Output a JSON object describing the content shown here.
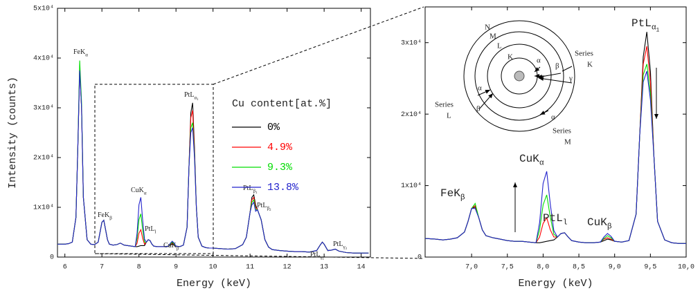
{
  "chart_data": [
    {
      "type": "line",
      "x_label": "Energy (keV)",
      "y_label": "Intensity (counts)",
      "xlim": [
        5.8,
        14.25
      ],
      "ylim": [
        0,
        50000
      ],
      "xticks": [
        6,
        7,
        8,
        9,
        10,
        11,
        12,
        13,
        14
      ],
      "yticks": [
        0,
        {
          "value": 10000,
          "label": "1x10⁴"
        },
        {
          "value": 20000,
          "label": "2x10⁴"
        },
        {
          "value": 30000,
          "label": "3x10⁴"
        },
        {
          "value": 40000,
          "label": "4x10⁴"
        },
        {
          "value": 50000,
          "label": "5x10⁴"
        }
      ],
      "legend_title": "Cu content[at.%]",
      "annotations": [
        {
          "text": "FeK",
          "sub": "α"
        },
        {
          "text": "FeK",
          "sub": "β"
        },
        {
          "text": "CuK",
          "sub": "α"
        },
        {
          "text": "PtL",
          "sub": "l"
        },
        {
          "text": "CuK",
          "sub": "β"
        },
        {
          "text": "PtL",
          "sub": "α",
          "sub2": "1"
        },
        {
          "text": "PtL",
          "sub": "β",
          "sub2": "1"
        },
        {
          "text": "PtL",
          "sub": "β",
          "sub2": "2"
        },
        {
          "text": "PtL",
          "sub": "γ",
          "sub2": "1"
        },
        {
          "text": "PtL",
          "sub": "γ",
          "sub2": "3"
        }
      ],
      "x": [
        5.8,
        5.9,
        6.0,
        6.1,
        6.2,
        6.3,
        6.35,
        6.4,
        6.45,
        6.5,
        6.6,
        6.7,
        6.8,
        6.9,
        6.95,
        7.0,
        7.05,
        7.1,
        7.15,
        7.2,
        7.3,
        7.4,
        7.5,
        7.6,
        7.7,
        7.8,
        7.9,
        7.95,
        8.0,
        8.05,
        8.1,
        8.15,
        8.2,
        8.25,
        8.3,
        8.35,
        8.4,
        8.5,
        8.6,
        8.7,
        8.8,
        8.85,
        8.9,
        8.95,
        9.0,
        9.1,
        9.2,
        9.3,
        9.35,
        9.4,
        9.45,
        9.5,
        9.55,
        9.6,
        9.7,
        9.8,
        9.9,
        10.0,
        10.2,
        10.4,
        10.6,
        10.8,
        10.9,
        11.0,
        11.05,
        11.1,
        11.15,
        11.2,
        11.3,
        11.4,
        11.5,
        11.6,
        11.8,
        12.0,
        12.2,
        12.4,
        12.6,
        12.8,
        12.9,
        12.95,
        13.0,
        13.1,
        13.2,
        13.3,
        13.4,
        13.6,
        13.8,
        14.0,
        14.2
      ],
      "series": [
        {
          "name": "0%",
          "color": "#000000",
          "values": [
            2600,
            2600,
            2600,
            2700,
            3000,
            8000,
            22000,
            38000,
            30000,
            12000,
            3500,
            2600,
            2500,
            3000,
            5000,
            7000,
            7400,
            5500,
            3500,
            2600,
            2400,
            2500,
            2800,
            2400,
            2300,
            2200,
            2100,
            2100,
            2200,
            2300,
            2300,
            2300,
            3000,
            3500,
            3300,
            2600,
            2200,
            2100,
            2100,
            2100,
            2200,
            2400,
            2600,
            2400,
            2200,
            2100,
            2400,
            6000,
            18000,
            29000,
            31000,
            22000,
            10000,
            4000,
            2200,
            1900,
            1800,
            1800,
            1700,
            1600,
            1700,
            2500,
            4000,
            9000,
            12000,
            12500,
            10500,
            9500,
            7500,
            3500,
            2000,
            1500,
            1300,
            1200,
            1100,
            1100,
            1000,
            1300,
            2500,
            3000,
            2600,
            1300,
            1400,
            1600,
            1200,
            900,
            800,
            800,
            800
          ]
        },
        {
          "name": "4.9%",
          "color": "#ff0000",
          "values": [
            2600,
            2600,
            2600,
            2700,
            3000,
            8000,
            22000,
            38000,
            30000,
            12000,
            3500,
            2600,
            2500,
            3000,
            5000,
            7000,
            7400,
            5500,
            3500,
            2600,
            2400,
            2500,
            2800,
            2400,
            2300,
            2200,
            2100,
            2800,
            4800,
            5500,
            3800,
            2600,
            3000,
            3500,
            3300,
            2600,
            2200,
            2100,
            2100,
            2100,
            2200,
            2500,
            2800,
            2400,
            2200,
            2100,
            2400,
            6000,
            18000,
            28000,
            29500,
            21000,
            10000,
            4000,
            2200,
            1900,
            1800,
            1800,
            1700,
            1600,
            1700,
            2500,
            4000,
            9000,
            11500,
            12000,
            10000,
            9500,
            7500,
            3500,
            2000,
            1500,
            1300,
            1200,
            1100,
            1100,
            1000,
            1300,
            2500,
            3000,
            2600,
            1300,
            1400,
            1600,
            1200,
            900,
            800,
            800,
            800
          ]
        },
        {
          "name": "9.3%",
          "color": "#00dd00",
          "values": [
            2600,
            2600,
            2600,
            2700,
            3000,
            8000,
            22000,
            39500,
            31000,
            12000,
            3500,
            2600,
            2500,
            3000,
            5000,
            7000,
            7400,
            5500,
            3500,
            2600,
            2400,
            2500,
            2800,
            2400,
            2300,
            2200,
            2100,
            3800,
            7500,
            8700,
            5500,
            3000,
            3000,
            3500,
            3300,
            2600,
            2200,
            2100,
            2100,
            2100,
            2200,
            2600,
            3000,
            2600,
            2200,
            2100,
            2400,
            6000,
            18000,
            26000,
            27000,
            20500,
            10000,
            4000,
            2200,
            1900,
            1800,
            1800,
            1700,
            1600,
            1700,
            2500,
            4000,
            9000,
            11000,
            11500,
            9500,
            9500,
            7500,
            3500,
            2000,
            1500,
            1300,
            1200,
            1100,
            1100,
            1000,
            1300,
            2500,
            3000,
            2600,
            1300,
            1400,
            1600,
            1200,
            900,
            800,
            800,
            800
          ]
        },
        {
          "name": "13.8%",
          "color": "#2222cc",
          "values": [
            2600,
            2600,
            2600,
            2700,
            3000,
            8000,
            22000,
            37500,
            30000,
            12000,
            3500,
            2600,
            2500,
            3000,
            5000,
            7000,
            7400,
            5500,
            3500,
            2600,
            2400,
            2500,
            2800,
            2400,
            2300,
            2200,
            2100,
            4800,
            10500,
            12000,
            7500,
            3600,
            3000,
            3500,
            3300,
            2600,
            2200,
            2100,
            2100,
            2100,
            2200,
            2800,
            3200,
            2800,
            2200,
            2100,
            2400,
            6000,
            18000,
            25000,
            26000,
            20000,
            10000,
            4000,
            2200,
            1900,
            1800,
            1800,
            1700,
            1600,
            1700,
            2500,
            4000,
            9000,
            10500,
            11000,
            9200,
            9500,
            7500,
            3500,
            2000,
            1500,
            1300,
            1200,
            1100,
            1100,
            1000,
            1300,
            2500,
            3000,
            2600,
            1300,
            1400,
            1600,
            1200,
            900,
            800,
            800,
            800
          ]
        }
      ]
    },
    {
      "type": "line",
      "x_label": "Energy (keV)",
      "xlim": [
        6.35,
        10.0
      ],
      "ylim": [
        0,
        35000
      ],
      "xticks": [
        {
          "value": 7,
          "label": "7,0"
        },
        {
          "value": 7.5,
          "label": "7,5"
        },
        {
          "value": 8,
          "label": "8,0"
        },
        {
          "value": 8.5,
          "label": "8,5"
        },
        {
          "value": 9,
          "label": "9,0"
        },
        {
          "value": 9.5,
          "label": "9,5"
        },
        {
          "value": 10,
          "label": "10,0"
        }
      ],
      "yticks": [
        0,
        {
          "value": 10000,
          "label": "1x10⁴"
        },
        {
          "value": 20000,
          "label": "2x10⁴"
        },
        {
          "value": 30000,
          "label": "3x10⁴"
        }
      ],
      "annotations": [
        {
          "text": "FeK",
          "sub": "β"
        },
        {
          "text": "CuK",
          "sub": "α"
        },
        {
          "text": "PtL",
          "sub": "l"
        },
        {
          "text": "CuK",
          "sub": "β"
        },
        {
          "text": "PtL",
          "sub": "α",
          "sub2": "1"
        }
      ],
      "inset": {
        "shells": [
          "N",
          "M",
          "L",
          "K"
        ],
        "lines": [
          "α",
          "β",
          "γ",
          "α",
          "β",
          "α"
        ],
        "series": [
          {
            "word": "Series",
            "shell": "K"
          },
          {
            "word": "Series",
            "shell": "L"
          },
          {
            "word": "Series",
            "shell": "M"
          }
        ]
      },
      "x": [
        6.35,
        6.5,
        6.6,
        6.7,
        6.8,
        6.9,
        6.95,
        7.0,
        7.05,
        7.1,
        7.15,
        7.2,
        7.3,
        7.4,
        7.5,
        7.6,
        7.7,
        7.8,
        7.9,
        7.95,
        8.0,
        8.05,
        8.1,
        8.15,
        8.2,
        8.25,
        8.3,
        8.35,
        8.4,
        8.5,
        8.6,
        8.7,
        8.8,
        8.85,
        8.9,
        8.95,
        9.0,
        9.1,
        9.2,
        9.3,
        9.35,
        9.4,
        9.45,
        9.5,
        9.55,
        9.6,
        9.7,
        9.8,
        9.9,
        10.0
      ],
      "series": [
        {
          "color": "#000000",
          "values": [
            2600,
            2500,
            2400,
            2500,
            2700,
            3500,
            5000,
            6800,
            7000,
            5500,
            3800,
            3000,
            2700,
            2500,
            2300,
            2200,
            2200,
            2100,
            2000,
            2000,
            2100,
            2200,
            2300,
            2400,
            2800,
            3300,
            3400,
            2800,
            2300,
            2100,
            2000,
            2000,
            2100,
            2300,
            2500,
            2400,
            2200,
            2100,
            2300,
            6000,
            17000,
            28000,
            31500,
            26000,
            14000,
            5000,
            2400,
            2000,
            1900,
            1900
          ]
        },
        {
          "color": "#ff0000",
          "values": [
            2600,
            2500,
            2400,
            2500,
            2700,
            3500,
            5000,
            6800,
            7200,
            5500,
            3800,
            3000,
            2700,
            2500,
            2300,
            2200,
            2200,
            2100,
            2000,
            2800,
            4700,
            5500,
            3800,
            2800,
            2800,
            3300,
            3400,
            2800,
            2300,
            2100,
            2000,
            2000,
            2100,
            2500,
            2700,
            2500,
            2200,
            2100,
            2300,
            6000,
            17000,
            27000,
            29500,
            24500,
            14000,
            5000,
            2400,
            2000,
            1900,
            1900
          ]
        },
        {
          "color": "#00dd00",
          "values": [
            2600,
            2500,
            2400,
            2500,
            2700,
            3500,
            5000,
            6800,
            7500,
            5500,
            3800,
            3000,
            2700,
            2500,
            2300,
            2200,
            2200,
            2100,
            2000,
            3800,
            7300,
            8700,
            5600,
            3200,
            2800,
            3300,
            3400,
            2800,
            2300,
            2100,
            2000,
            2000,
            2100,
            2600,
            3000,
            2700,
            2200,
            2100,
            2300,
            6000,
            17000,
            25500,
            27000,
            23000,
            14000,
            5000,
            2400,
            2000,
            1900,
            1900
          ]
        },
        {
          "color": "#2222cc",
          "values": [
            2600,
            2500,
            2400,
            2500,
            2700,
            3500,
            5000,
            6800,
            6800,
            5500,
            3800,
            3000,
            2700,
            2500,
            2300,
            2200,
            2200,
            2100,
            2000,
            4800,
            10300,
            12000,
            7400,
            3700,
            2800,
            3300,
            3400,
            2800,
            2300,
            2100,
            2000,
            2000,
            2100,
            2800,
            3300,
            2900,
            2200,
            2100,
            2300,
            6000,
            17000,
            24500,
            26000,
            22000,
            14000,
            5000,
            2400,
            2000,
            1900,
            1900
          ]
        }
      ]
    }
  ]
}
